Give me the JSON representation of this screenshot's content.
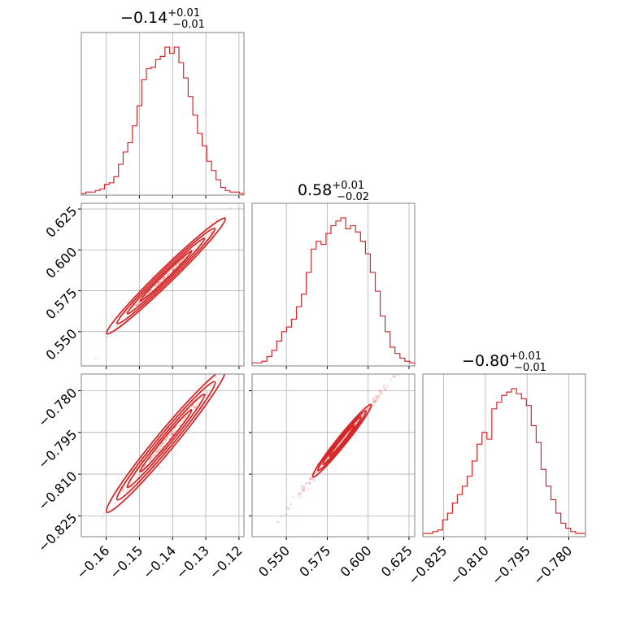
{
  "colors": {
    "accent": "#d62728",
    "frame": "#808080",
    "grid": "#b0b0b0"
  },
  "titles": [
    {
      "value": "−0.14",
      "sup": "+0.01",
      "sub": "−0.01"
    },
    {
      "value": "0.58",
      "sup": "+0.01",
      "sub": "−0.02"
    },
    {
      "value": "−0.80",
      "sup": "+0.01",
      "sub": "−0.01"
    }
  ],
  "chart_data": {
    "type": "corner",
    "grid": true,
    "parameters": [
      {
        "range": [
          -0.1675,
          -0.1185
        ],
        "ticks": [
          -0.16,
          -0.15,
          -0.14,
          -0.13,
          -0.12
        ],
        "tick_labels": [
          "−0.16",
          "−0.15",
          "−0.14",
          "−0.13",
          "−0.12"
        ],
        "hist": [
          1,
          2,
          2,
          3,
          4,
          7,
          8,
          12,
          20,
          28,
          34,
          45,
          58,
          75,
          82,
          83,
          88,
          90,
          96,
          92,
          96,
          86,
          76,
          64,
          52,
          40,
          32,
          22,
          16,
          10,
          5,
          3,
          2,
          2,
          1
        ]
      },
      {
        "range": [
          0.529,
          0.6285
        ],
        "ticks": [
          0.55,
          0.575,
          0.6,
          0.625
        ],
        "tick_labels": [
          "0.550",
          "0.575",
          "0.600",
          "0.625"
        ],
        "hist": [
          2,
          2,
          3,
          6,
          10,
          16,
          22,
          25,
          30,
          38,
          46,
          60,
          75,
          80,
          78,
          85,
          90,
          93,
          95,
          88,
          90,
          86,
          80,
          72,
          60,
          48,
          32,
          22,
          12,
          8,
          5,
          3,
          2
        ]
      },
      {
        "range": [
          -0.8325,
          -0.774
        ],
        "ticks": [
          -0.825,
          -0.81,
          -0.795,
          -0.78
        ],
        "tick_labels": [
          "−0.825",
          "−0.810",
          "−0.795",
          "−0.780"
        ],
        "hist": [
          2,
          2,
          3,
          4,
          10,
          14,
          20,
          25,
          30,
          36,
          45,
          55,
          62,
          58,
          76,
          80,
          84,
          86,
          88,
          85,
          82,
          78,
          66,
          56,
          40,
          30,
          22,
          14,
          8,
          5,
          3,
          2,
          2
        ]
      }
    ],
    "pairs": [
      {
        "x": 0,
        "y": 1,
        "slope": 1.98,
        "center": [
          -0.142,
          0.584
        ],
        "spread": 0.0024
      },
      {
        "x": 0,
        "y": 2,
        "slope": 1.44,
        "center": [
          -0.142,
          -0.798
        ],
        "spread": 0.0018
      },
      {
        "x": 1,
        "y": 2,
        "slope": 0.73,
        "center": [
          0.584,
          -0.798
        ],
        "spread": 0.0009
      }
    ]
  }
}
